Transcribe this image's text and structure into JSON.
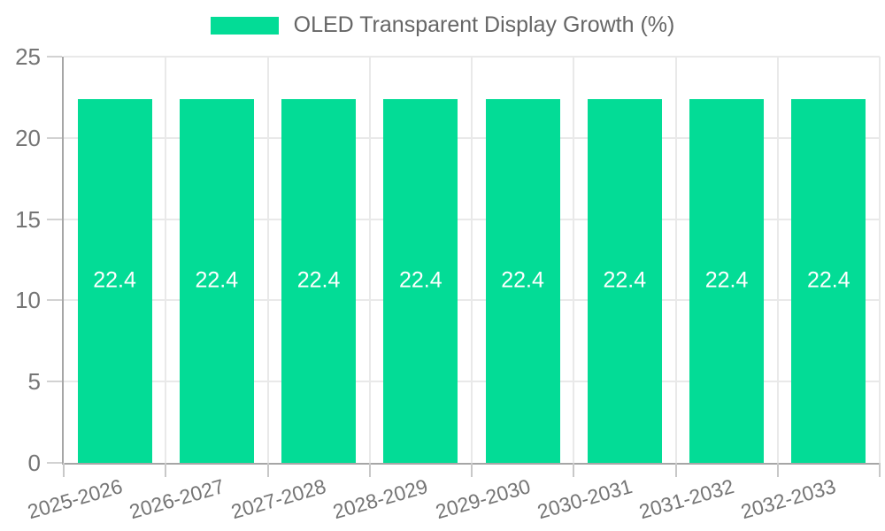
{
  "chart_data": {
    "type": "bar",
    "title": "",
    "xlabel": "",
    "ylabel": "",
    "categories": [
      "2025-2026",
      "2026-2027",
      "2027-2028",
      "2028-2029",
      "2029-2030",
      "2030-2031",
      "2031-2032",
      "2032-2033"
    ],
    "series": [
      {
        "name": "OLED Transparent Display Growth (%)",
        "values": [
          22.4,
          22.4,
          22.4,
          22.4,
          22.4,
          22.4,
          22.4,
          22.4
        ]
      }
    ],
    "value_labels": [
      "22.4",
      "22.4",
      "22.4",
      "22.4",
      "22.4",
      "22.4",
      "22.4",
      "22.4"
    ],
    "ylim": [
      0,
      25
    ],
    "y_ticks": [
      25,
      20,
      15,
      10,
      5,
      0
    ],
    "grid": "on",
    "legend_position": "top-center",
    "x_tick_rotation_deg": -16,
    "colors": {
      "bar": "#03DC96",
      "value_label": "#FFFFFF",
      "tick_label": "#757575",
      "legend_label": "#666666"
    }
  }
}
